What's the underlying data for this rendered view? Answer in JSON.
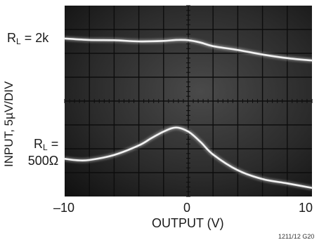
{
  "chart_data": {
    "type": "line",
    "title": "",
    "xlabel": "OUTPUT (V)",
    "ylabel": "INPUT, 5µV/DIV",
    "xlim": [
      -10,
      10
    ],
    "x_ticks": [
      "–10",
      "0",
      "10"
    ],
    "grid": true,
    "background": "oscilloscope",
    "divisions": {
      "x": 10,
      "y": 8
    },
    "series": [
      {
        "name": "RL = 2k",
        "label_main": "R",
        "label_sub": "L",
        "label_rest": " = 2k",
        "color": "#f2f2f2",
        "x": [
          -10,
          -8,
          -6,
          -4,
          -2,
          -1,
          0,
          1,
          2,
          4,
          6,
          8,
          10
        ],
        "y_div": [
          6.62,
          6.56,
          6.55,
          6.5,
          6.52,
          6.56,
          6.55,
          6.45,
          6.3,
          6.14,
          5.95,
          5.8,
          5.7
        ]
      },
      {
        "name": "RL = 500Ω",
        "label_main": "R",
        "label_sub": "L",
        "label_rest": " =",
        "label_line2": "500Ω",
        "color": "#f2f2f2",
        "x": [
          -10,
          -9,
          -8,
          -6,
          -4,
          -3,
          -2,
          -1,
          0,
          1,
          2,
          4,
          6,
          8,
          10
        ],
        "y_div": [
          1.58,
          1.52,
          1.53,
          1.74,
          2.14,
          2.44,
          2.72,
          2.89,
          2.72,
          2.28,
          1.76,
          1.1,
          0.73,
          0.55,
          0.36
        ]
      }
    ]
  },
  "footnote": "1211/12 G20"
}
